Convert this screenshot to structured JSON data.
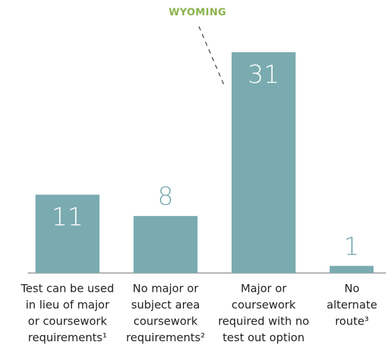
{
  "chart_data": {
    "type": "bar",
    "categories": [
      [
        "Test can be used",
        "in lieu of major",
        "or coursework",
        "requirements¹"
      ],
      [
        "No major or",
        "subject area",
        "coursework",
        "requirements²"
      ],
      [
        "Major or",
        "coursework",
        "required with no",
        "test out option"
      ],
      [
        "No",
        "alternate",
        "route³"
      ]
    ],
    "values": [
      11,
      8,
      31,
      1
    ],
    "color": "#7aabb0",
    "annotation": "WYOMING"
  }
}
